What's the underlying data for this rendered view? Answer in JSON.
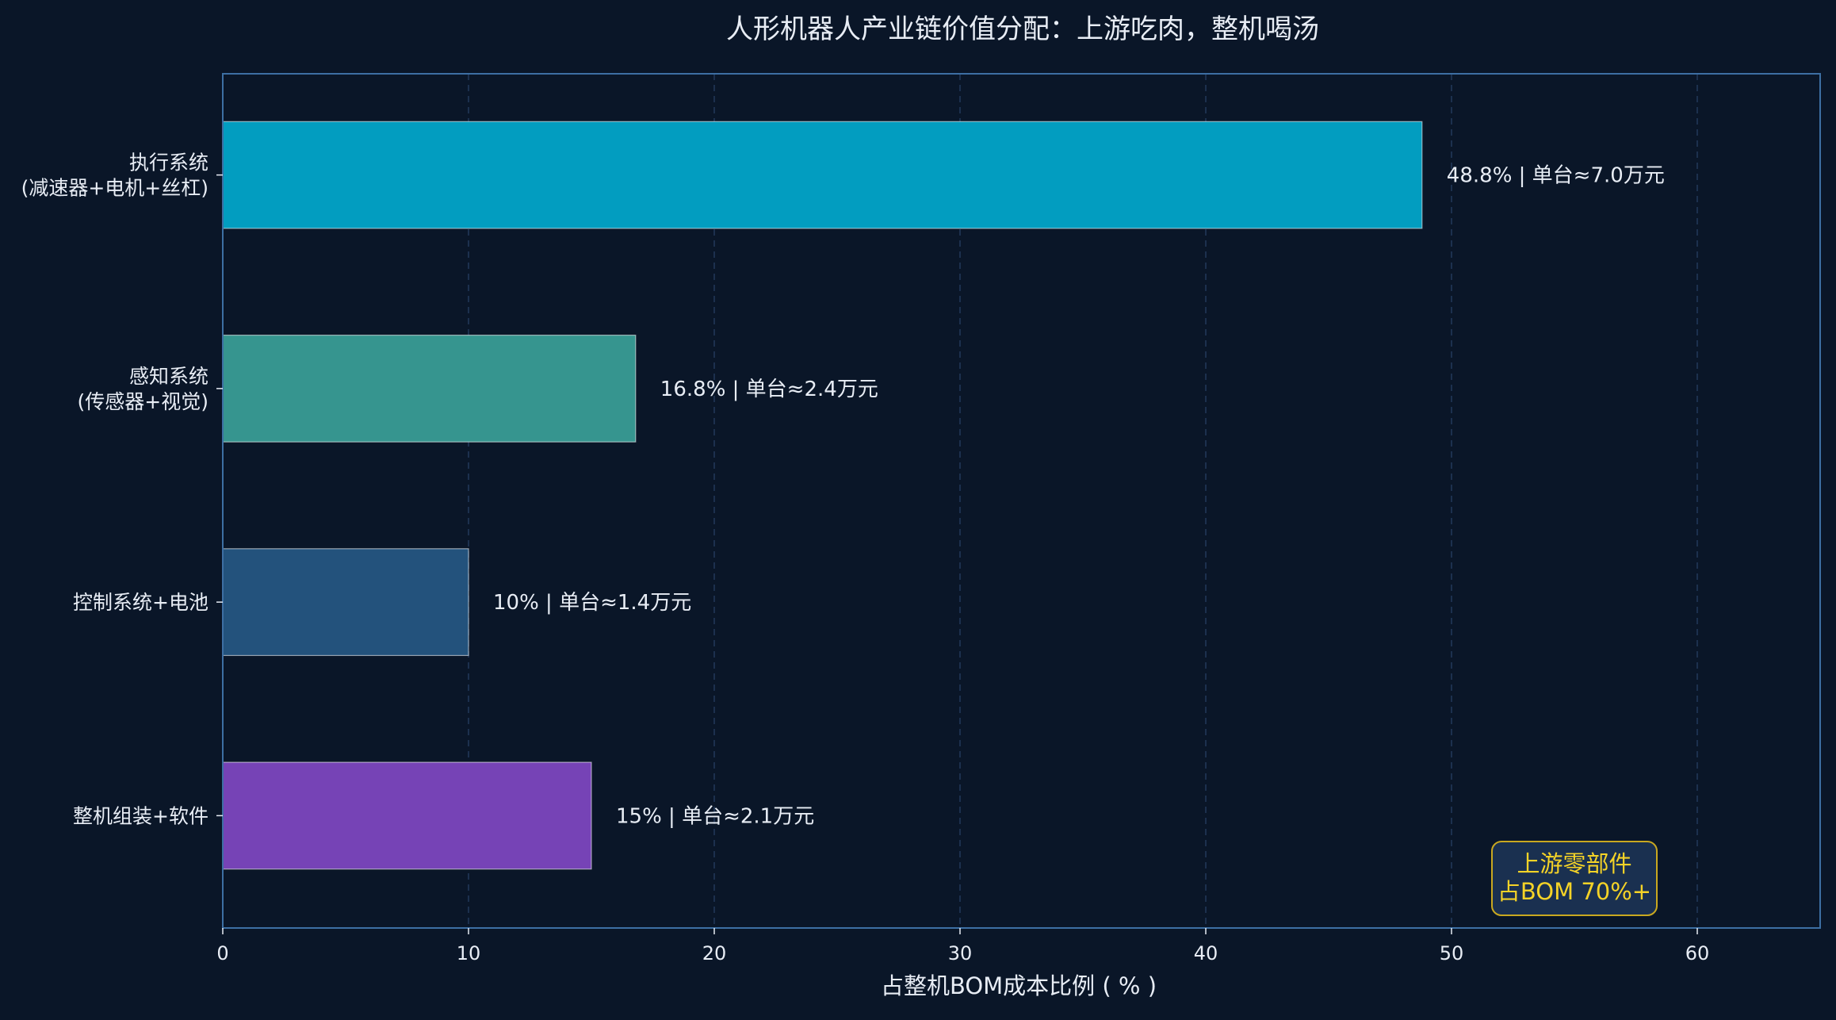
{
  "chart_data": {
    "type": "bar",
    "orientation": "horizontal",
    "title": "人形机器人产业链价值分配：上游吃肉，整机喝汤",
    "xlabel": "占整机BOM成本比例 ( % )",
    "ylabel": "",
    "xlim": [
      0,
      65
    ],
    "xticks": [
      "0",
      "10",
      "20",
      "30",
      "40",
      "50",
      "60"
    ],
    "grid": "vertical-dashed",
    "categories": [
      [
        "执行系统",
        "(减速器+电机+丝杠)"
      ],
      [
        "感知系统",
        "(传感器+视觉)"
      ],
      [
        "控制系统+电池"
      ],
      [
        "整机组装+软件"
      ]
    ],
    "values": [
      48.8,
      16.8,
      10,
      15
    ],
    "data_labels": [
      "48.8% | 单台≈7.0万元",
      "16.8% | 单台≈2.4万元",
      "10% | 单台≈1.4万元",
      "15% | 单台≈2.1万元"
    ],
    "colors": [
      "#029dc0",
      "#36958f",
      "#23527c",
      "#7643b6"
    ],
    "annotation": {
      "lines": [
        "上游零部件",
        "占BOM 70%+"
      ],
      "position": "bottom-right",
      "text_color": "#f5d327",
      "border_color": "#c9a820",
      "background": "#1a3050"
    }
  },
  "style": {
    "background": "#0a1628",
    "axis_color": "#3d6fa3",
    "grid_color": "#23385a",
    "text_color": "#e8edf5"
  }
}
